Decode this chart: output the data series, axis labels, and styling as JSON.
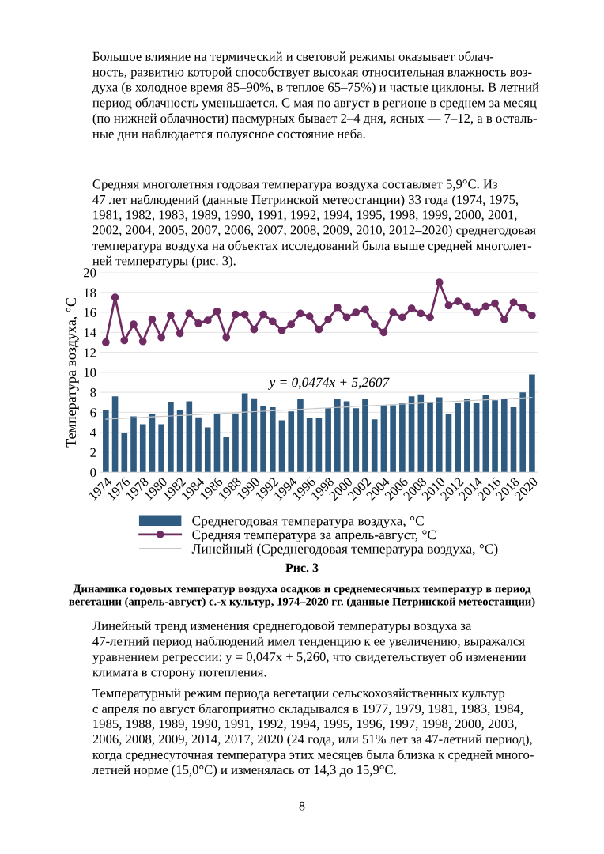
{
  "chart_data": {
    "type": "bar",
    "ylabel": "Температура воздуха, °С",
    "categories": [
      "1974",
      null,
      "1976",
      null,
      "1978",
      null,
      "1980",
      null,
      "1982",
      null,
      "1984",
      null,
      "1986",
      null,
      "1988",
      null,
      "1990",
      null,
      "1992",
      null,
      "1994",
      null,
      "1996",
      null,
      "1998",
      null,
      "2000",
      null,
      "2002",
      null,
      "2004",
      null,
      "2006",
      null,
      "2008",
      null,
      "2010",
      null,
      "2012",
      null,
      "2014",
      null,
      "2016",
      null,
      "2018",
      null,
      "2020"
    ],
    "series": [
      {
        "name": "Среднегодовая температура воздуха, °С",
        "color": "#2f5b80",
        "values": [
          6.2,
          7.6,
          3.9,
          5.6,
          4.8,
          5.8,
          4.8,
          7.0,
          6.2,
          7.1,
          5.5,
          4.5,
          5.8,
          3.5,
          5.9,
          7.9,
          7.4,
          6.6,
          6.5,
          5.2,
          6.1,
          7.3,
          5.4,
          5.4,
          6.4,
          7.3,
          7.1,
          6.4,
          7.3,
          5.3,
          6.7,
          6.7,
          6.9,
          7.6,
          7.8,
          7.0,
          7.5,
          5.8,
          6.9,
          7.3,
          6.9,
          7.7,
          7.2,
          7.3,
          6.5,
          8.0,
          9.8
        ]
      },
      {
        "name": "Средняя температура за апрель-август, °С",
        "type": "line",
        "color": "#6e2c63",
        "marker": "circle",
        "values": [
          13.0,
          17.5,
          13.2,
          14.8,
          13.1,
          15.3,
          13.5,
          15.7,
          13.9,
          15.9,
          14.9,
          15.2,
          16.1,
          13.5,
          15.8,
          15.8,
          14.3,
          15.8,
          15.1,
          14.2,
          14.8,
          15.9,
          15.6,
          14.3,
          15.3,
          16.5,
          15.5,
          16.0,
          16.3,
          14.8,
          14.0,
          16.0,
          15.5,
          16.4,
          15.9,
          15.5,
          19.0,
          16.7,
          17.1,
          16.6,
          16.0,
          16.6,
          16.9,
          15.3,
          17.0,
          16.5,
          15.7
        ]
      },
      {
        "name": "Линейный (Среднегодовая температура воздуха, °С)",
        "type": "line",
        "color": "#c8c8c8",
        "marker": "none",
        "values": [
          5.31,
          5.36,
          5.4,
          5.45,
          5.5,
          5.55,
          5.59,
          5.64,
          5.69,
          5.73,
          5.78,
          5.83,
          5.88,
          5.92,
          5.97,
          6.02,
          6.07,
          6.11,
          6.16,
          6.21,
          6.26,
          6.3,
          6.35,
          6.4,
          6.45,
          6.49,
          6.54,
          6.59,
          6.64,
          6.68,
          6.73,
          6.78,
          6.83,
          6.87,
          6.92,
          6.97,
          7.01,
          7.06,
          7.11,
          7.16,
          7.2,
          7.25,
          7.3,
          7.35,
          7.39,
          7.44,
          7.49
        ]
      }
    ],
    "ylim": [
      0,
      20
    ],
    "yticks": [
      0,
      2,
      4,
      6,
      8,
      10,
      12,
      14,
      16,
      18,
      20
    ],
    "grid": "y",
    "legend": "bottom",
    "annotations": [
      "Большое влияние на термический и световой режимы оказывает облач-\nность, развитию которой способствует высокая относительная влажность воз-\nдуха (в холодное время 85–90%, в теплое 65–75%) и частые циклоны. В летний\nпериод облачность уменьшается. С мая по август в регионе в среднем за месяц\n(по нижней облачности) пасмурных бывает 2–4 дня, ясных — 7–12, а в осталь-\nные дни наблюдается полуясное состояние неба.",
      "Средняя многолетняя годовая температура воздуха составляет 5,9°С. Из\n47 лет наблюдений (данные Петринской метеостанции) 33 года (1974, 1975,\n1981, 1982, 1983, 1989, 1990, 1991, 1992, 1994, 1995, 1998, 1999, 2000, 2001,\n2002, 2004, 2005, 2007, 2006, 2007, 2008, 2009, 2010, 2012–2020) среднегодовая\nтемпература воздуха на объектах исследований была выше средней многолет-\nней температуры (рис. 3).",
      "y = 0,0474x + 5,2607",
      "Рис. 3",
      "Динамика годовых температур воздуха осадков и среднемесячных температур в период\nвегетации (апрель-август) с.-х культур, 1974–2020 гг. (данные Петринской метеостанции)",
      "Линейный тренд изменения среднегодовой температуры воздуха за\n47-летний период наблюдений имел тенденцию к ее увеличению, выражался\nуравнением регрессии: y = 0,047x + 5,260, что свидетельствует об изменении\nклимата в сторону потепления.",
      "Температурный режим периода вегетации сельскохозяйственных культур\nс апреля по август благоприятно складывался в 1977, 1979, 1981, 1983, 1984,\n1985, 1988, 1989, 1990, 1991, 1992, 1994, 1995, 1996, 1997, 1998, 2000, 2003,\n2006, 2008, 2009, 2014, 2017, 2020 (24 года, или 51% лет за 47-летний период),\nкогда среднесуточная температура этих месяцев была близка к средней много-\nлетней норме (15,0°С) и изменялась от 14,3 до 15,9°С.",
      "8"
    ]
  }
}
